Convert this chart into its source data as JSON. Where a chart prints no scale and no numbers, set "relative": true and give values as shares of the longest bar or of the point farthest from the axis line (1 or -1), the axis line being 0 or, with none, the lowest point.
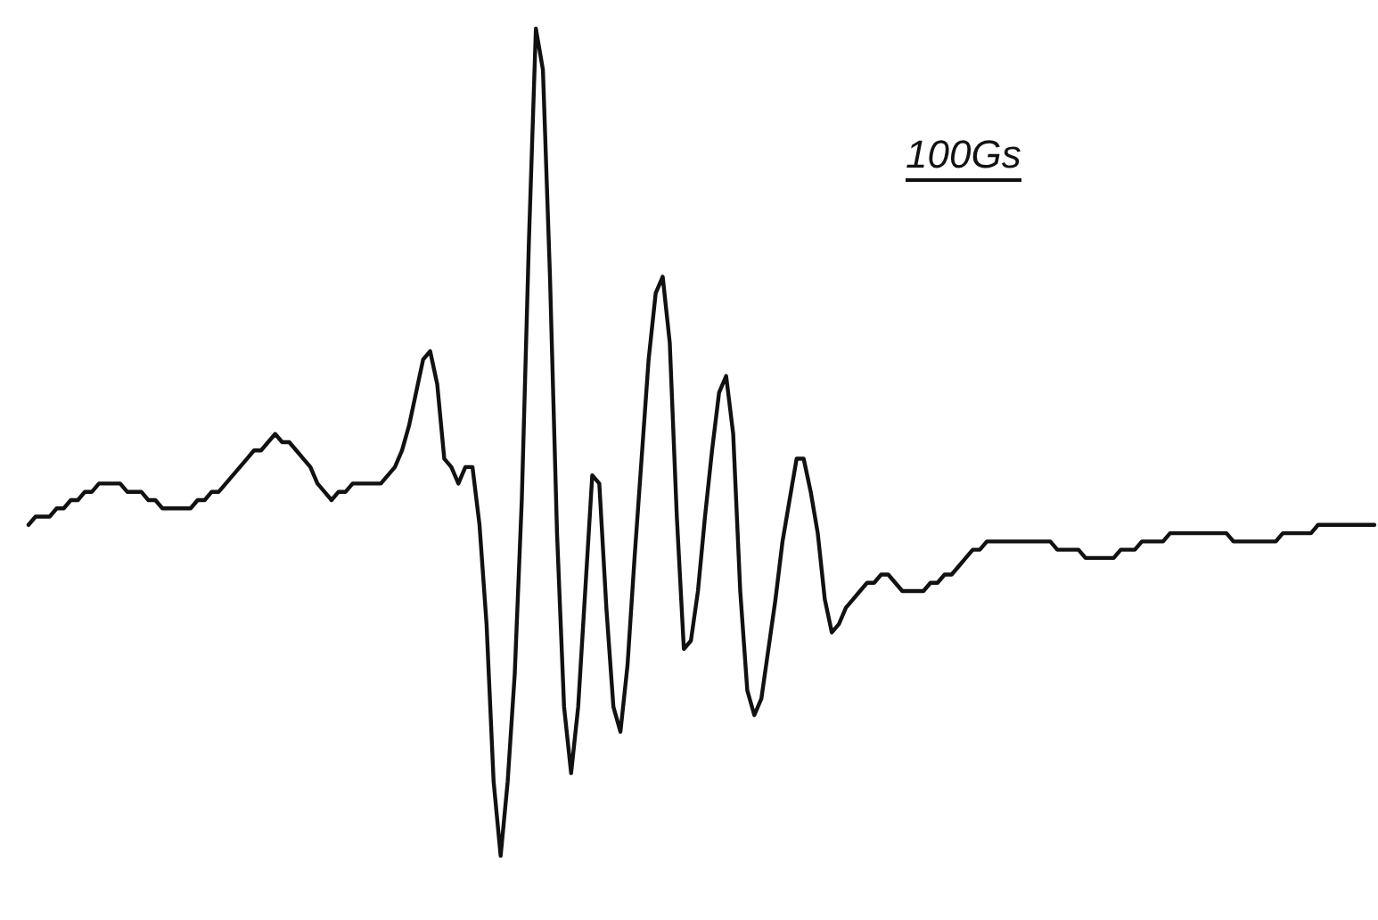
{
  "chart_data": {
    "type": "line",
    "relative": true,
    "color": "#111111",
    "line_style": "solid",
    "marker": "none",
    "annotations": [
      "100Gs"
    ],
    "categories": [
      null,
      null,
      null,
      null,
      null,
      null,
      null,
      null,
      null,
      null,
      null,
      null,
      null,
      null,
      null,
      null,
      null,
      null,
      null,
      null,
      null,
      null,
      null,
      null,
      null,
      null,
      null,
      null,
      null,
      null,
      null,
      null,
      null,
      null,
      null,
      null,
      null,
      null,
      null,
      null,
      null,
      null,
      null,
      null,
      null,
      null,
      null,
      null,
      null,
      null,
      null,
      null,
      null,
      null,
      null,
      null,
      null,
      null,
      null,
      null,
      null,
      null,
      null,
      null,
      null,
      null,
      null,
      null,
      null,
      null,
      null,
      null,
      null,
      null,
      null,
      null,
      null,
      null,
      null,
      null,
      null,
      null,
      null,
      null,
      null,
      null,
      null,
      null,
      null,
      null,
      null,
      null,
      null,
      null,
      null,
      null,
      null,
      null,
      null,
      null,
      null,
      null,
      null,
      null,
      null,
      null,
      null,
      null,
      null,
      null,
      null,
      null,
      null,
      null,
      null,
      null,
      null,
      null,
      null,
      null,
      null,
      null,
      null,
      null,
      null,
      null,
      null,
      null,
      null,
      null,
      null,
      null,
      null,
      null,
      null,
      null,
      null,
      null,
      null,
      null,
      null,
      null,
      null,
      null,
      null,
      null,
      null,
      null,
      null,
      null,
      null,
      null,
      null,
      null,
      null,
      null,
      null,
      null,
      null,
      null,
      null,
      null,
      null,
      null,
      null,
      null,
      null,
      null,
      null,
      null,
      null,
      null,
      null,
      null,
      null,
      null,
      null,
      null,
      null,
      null,
      null,
      null,
      null,
      null,
      null,
      null,
      null,
      null,
      null,
      null,
      null,
      null
    ],
    "values": [
      0.4,
      0.41,
      0.41,
      0.41,
      0.42,
      0.42,
      0.43,
      0.43,
      0.44,
      0.44,
      0.45,
      0.45,
      0.45,
      0.45,
      0.44,
      0.44,
      0.44,
      0.43,
      0.43,
      0.42,
      0.42,
      0.42,
      0.42,
      0.42,
      0.43,
      0.43,
      0.44,
      0.44,
      0.45,
      0.46,
      0.47,
      0.48,
      0.49,
      0.49,
      0.5,
      0.51,
      0.5,
      0.5,
      0.49,
      0.48,
      0.47,
      0.45,
      0.44,
      0.43,
      0.44,
      0.44,
      0.45,
      0.45,
      0.45,
      0.45,
      0.45,
      0.46,
      0.47,
      0.49,
      0.52,
      0.56,
      0.6,
      0.61,
      0.57,
      0.48,
      0.47,
      0.45,
      0.47,
      0.47,
      0.4,
      0.28,
      0.09,
      0,
      0.09,
      0.22,
      0.43,
      0.74,
      1,
      0.95,
      0.7,
      0.39,
      0.18,
      0.1,
      0.18,
      0.32,
      0.46,
      0.45,
      0.3,
      0.18,
      0.15,
      0.23,
      0.36,
      0.48,
      0.6,
      0.68,
      0.7,
      0.62,
      0.41,
      0.25,
      0.26,
      0.32,
      0.41,
      0.49,
      0.56,
      0.58,
      0.51,
      0.32,
      0.2,
      0.17,
      0.19,
      0.25,
      0.31,
      0.38,
      0.43,
      0.48,
      0.48,
      0.44,
      0.39,
      0.31,
      0.27,
      0.28,
      0.3,
      0.31,
      0.32,
      0.33,
      0.33,
      0.34,
      0.34,
      0.33,
      0.32,
      0.32,
      0.32,
      0.32,
      0.33,
      0.33,
      0.34,
      0.34,
      0.35,
      0.36,
      0.37,
      0.37,
      0.38,
      0.38,
      0.38,
      0.38,
      0.38,
      0.38,
      0.38,
      0.38,
      0.38,
      0.38,
      0.37,
      0.37,
      0.37,
      0.37,
      0.36,
      0.36,
      0.36,
      0.36,
      0.36,
      0.37,
      0.37,
      0.37,
      0.38,
      0.38,
      0.38,
      0.38,
      0.39,
      0.39,
      0.39,
      0.39,
      0.39,
      0.39,
      0.39,
      0.39,
      0.39,
      0.38,
      0.38,
      0.38,
      0.38,
      0.38,
      0.38,
      0.38,
      0.39,
      0.39,
      0.39,
      0.39,
      0.39,
      0.4,
      0.4,
      0.4,
      0.4,
      0.4,
      0.4,
      0.4,
      0.4,
      0.4
    ]
  }
}
